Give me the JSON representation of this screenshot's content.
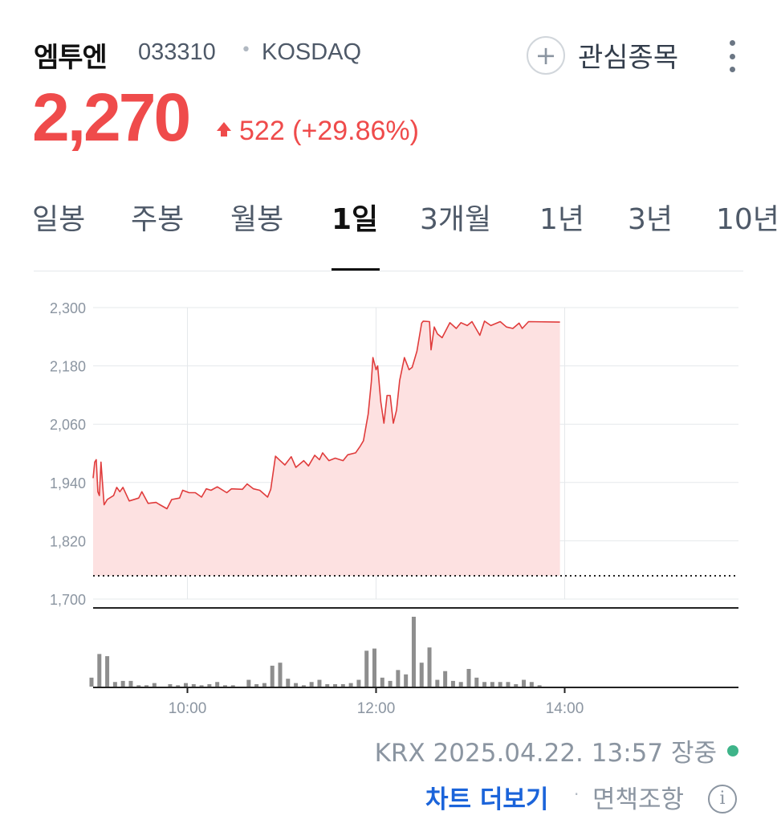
{
  "header": {
    "name": "엠투엔",
    "code": "033310",
    "separator": "•",
    "market": "KOSDAQ",
    "price": "2,270",
    "change": "522 (+29.86%)",
    "watch_label": "관심종목",
    "icons": {
      "plus": "+",
      "up": "up-arrow-icon",
      "more": "more-vertical-icon"
    }
  },
  "tabs": [
    {
      "label": "일봉",
      "selected": false
    },
    {
      "label": "주봉",
      "selected": false
    },
    {
      "label": "월봉",
      "selected": false
    },
    {
      "label": "1일",
      "selected": true
    },
    {
      "label": "3개월",
      "selected": false
    },
    {
      "label": "1년",
      "selected": false
    },
    {
      "label": "3년",
      "selected": false
    },
    {
      "label": "10년",
      "selected": false
    }
  ],
  "colors": {
    "up": "#ef4b4b",
    "line": "#e03c3c",
    "fill": "#fde1e1",
    "volume": "#8e8e8e",
    "accent": "#1b64da",
    "live": "#3eb489"
  },
  "chart_data": {
    "type": "line",
    "grid": true,
    "y_ticks": [
      "2,300",
      "2,180",
      "2,060",
      "1,940",
      "1,820",
      "1,700"
    ],
    "y_tick_values": [
      2300,
      2180,
      2060,
      1940,
      1820,
      1700
    ],
    "ylim": [
      1700,
      2300
    ],
    "x_ticks": [
      "10:00",
      "12:00",
      "14:00"
    ],
    "xlim": [
      "09:00",
      "15:50"
    ],
    "reference_line": {
      "value": 1748,
      "style": "dotted"
    },
    "price_series": [
      [
        "09:00",
        1949
      ],
      [
        "09:01",
        1982
      ],
      [
        "09:02",
        1987
      ],
      [
        "09:03",
        1921
      ],
      [
        "09:04",
        1913
      ],
      [
        "09:05",
        1982
      ],
      [
        "09:07",
        1894
      ],
      [
        "09:09",
        1905
      ],
      [
        "09:13",
        1913
      ],
      [
        "09:15",
        1930
      ],
      [
        "09:17",
        1921
      ],
      [
        "09:19",
        1930
      ],
      [
        "09:23",
        1902
      ],
      [
        "09:29",
        1908
      ],
      [
        "09:31",
        1921
      ],
      [
        "09:35",
        1897
      ],
      [
        "09:40",
        1899
      ],
      [
        "09:42",
        1895
      ],
      [
        "09:47",
        1886
      ],
      [
        "09:50",
        1905
      ],
      [
        "09:55",
        1908
      ],
      [
        "09:57",
        1924
      ],
      [
        "10:01",
        1919
      ],
      [
        "10:05",
        1919
      ],
      [
        "10:09",
        1910
      ],
      [
        "10:12",
        1927
      ],
      [
        "10:15",
        1924
      ],
      [
        "10:19",
        1931
      ],
      [
        "10:25",
        1919
      ],
      [
        "10:28",
        1927
      ],
      [
        "10:35",
        1926
      ],
      [
        "10:38",
        1937
      ],
      [
        "10:42",
        1927
      ],
      [
        "10:46",
        1924
      ],
      [
        "10:51",
        1910
      ],
      [
        "10:53",
        1926
      ],
      [
        "10:56",
        1994
      ],
      [
        "10:59",
        1985
      ],
      [
        "11:02",
        1976
      ],
      [
        "11:06",
        1993
      ],
      [
        "11:09",
        1971
      ],
      [
        "11:14",
        1985
      ],
      [
        "11:17",
        1974
      ],
      [
        "11:21",
        1996
      ],
      [
        "11:24",
        1987
      ],
      [
        "11:26",
        2001
      ],
      [
        "11:30",
        1985
      ],
      [
        "11:34",
        1990
      ],
      [
        "11:39",
        1985
      ],
      [
        "11:42",
        1997
      ],
      [
        "11:47",
        2001
      ],
      [
        "11:50",
        2015
      ],
      [
        "11:52",
        2026
      ],
      [
        "11:55",
        2081
      ],
      [
        "11:57",
        2147
      ],
      [
        "11:58",
        2197
      ],
      [
        "12:00",
        2172
      ],
      [
        "12:01",
        2180
      ],
      [
        "12:03",
        2106
      ],
      [
        "12:05",
        2062
      ],
      [
        "12:07",
        2119
      ],
      [
        "12:09",
        2119
      ],
      [
        "12:11",
        2062
      ],
      [
        "12:13",
        2089
      ],
      [
        "12:15",
        2150
      ],
      [
        "12:18",
        2197
      ],
      [
        "12:21",
        2172
      ],
      [
        "12:23",
        2177
      ],
      [
        "12:26",
        2210
      ],
      [
        "12:29",
        2268
      ],
      [
        "12:30",
        2272
      ],
      [
        "12:34",
        2271
      ],
      [
        "12:35",
        2213
      ],
      [
        "12:37",
        2260
      ],
      [
        "12:39",
        2246
      ],
      [
        "12:42",
        2238
      ],
      [
        "12:47",
        2269
      ],
      [
        "12:51",
        2257
      ],
      [
        "12:54",
        2269
      ],
      [
        "12:58",
        2263
      ],
      [
        "13:01",
        2271
      ],
      [
        "13:06",
        2243
      ],
      [
        "13:09",
        2272
      ],
      [
        "13:13",
        2263
      ],
      [
        "13:19",
        2271
      ],
      [
        "13:23",
        2260
      ],
      [
        "13:27",
        2257
      ],
      [
        "13:31",
        2268
      ],
      [
        "13:33",
        2257
      ],
      [
        "13:37",
        2271
      ],
      [
        "13:57",
        2270
      ]
    ],
    "volume": {
      "type": "bar",
      "interval_minutes": 5,
      "start": "09:00",
      "values": [
        33,
        120,
        112,
        17,
        21,
        21,
        5,
        5,
        13,
        0,
        9,
        5,
        13,
        9,
        5,
        9,
        17,
        5,
        5,
        0,
        25,
        9,
        13,
        77,
        88,
        29,
        13,
        5,
        17,
        25,
        9,
        9,
        9,
        13,
        25,
        132,
        140,
        33,
        21,
        61,
        45,
        257,
        88,
        144,
        25,
        57,
        21,
        17,
        65,
        33,
        17,
        17,
        17,
        17,
        9,
        25,
        17,
        5
      ]
    }
  },
  "footer": {
    "source": "KRX 2025.04.22. 13:57 장중",
    "more_chart": "차트 더보기",
    "separator": "·",
    "disclaimer": "면책조항",
    "info": "i"
  }
}
